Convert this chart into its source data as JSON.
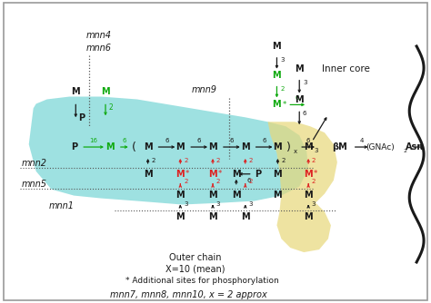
{
  "background_color": "#ffffff",
  "border_color": "#999999",
  "teal_color": "#5ecece",
  "teal_alpha": 0.6,
  "yellow_color": "#e8d87a",
  "yellow_alpha": 0.7,
  "black": "#1a1a1a",
  "green": "#11aa11",
  "red": "#dd2222",
  "figsize": [
    4.74,
    3.34
  ],
  "dpi": 100,
  "inner_core": "Inner core",
  "mnn4": "mnn4",
  "mnn6": "mnn6",
  "mnn9": "mnn9",
  "mnn2": "mnn2",
  "mnn5": "mnn5",
  "mnn1": "mnn1",
  "bot1": "Outer chain",
  "bot2": "X=10 (mean)",
  "bot3": "* Additional sites for phosphorylation",
  "bot4": "mnn7, mnn8, mnn10, x = 2 approx"
}
